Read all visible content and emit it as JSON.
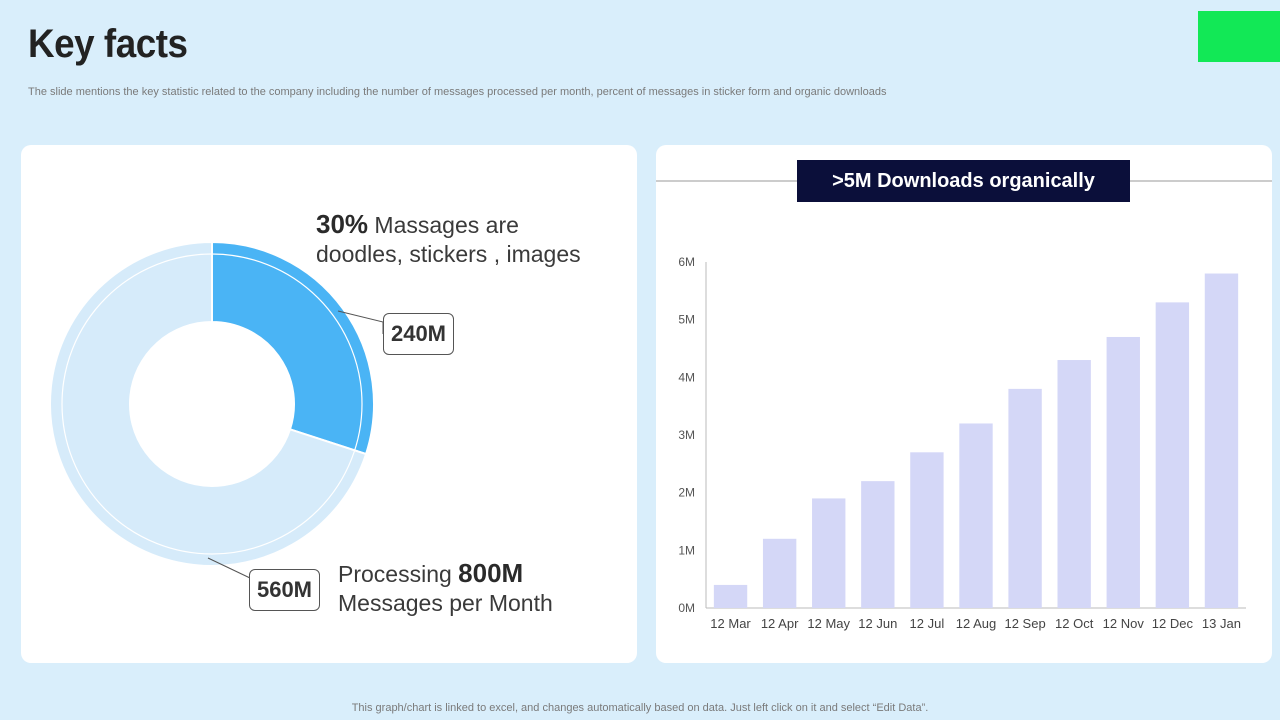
{
  "title": "Key facts",
  "subtitle": "The slide mentions the key statistic related to the company including the number of messages processed per month, percent of messages in sticker form and organic downloads",
  "footer": "This graph/chart is linked to excel,  and changes automatically based on data. Just left click on it and select “Edit Data”.",
  "callouts": {
    "top_value": "30%",
    "top_text_1": " Massages are",
    "top_text_2": "doodles, stickers , images",
    "bottom_prefix": "Processing ",
    "bottom_value": "800M",
    "bottom_text_2": "Messages per Month",
    "label_240": "240M",
    "label_560": "560M"
  },
  "banner": ">5M Downloads organically",
  "colors": {
    "background": "#d9eefb",
    "accent": "#12e856",
    "donut_highlight": "#4ab4f5",
    "donut_rest": "#d6ebfa",
    "bar": "#d4d7f7",
    "banner_bg": "#0b0f3a"
  },
  "chart_data": [
    {
      "type": "pie",
      "variant": "donut",
      "labels": [
        "240M",
        "560M"
      ],
      "values": [
        240,
        560
      ],
      "total": 800
    },
    {
      "type": "bar",
      "title": ">5M Downloads organically",
      "categories": [
        "12 Mar",
        "12 Apr",
        "12 May",
        "12 Jun",
        "12 Jul",
        "12 Aug",
        "12 Sep",
        "12 Oct",
        "12 Nov",
        "12 Dec",
        "13 Jan"
      ],
      "values": [
        0.4,
        1.2,
        1.9,
        2.2,
        2.7,
        3.2,
        3.8,
        4.3,
        4.7,
        5.3,
        5.8
      ],
      "yticks": [
        "0M",
        "1M",
        "2M",
        "3M",
        "4M",
        "5M",
        "6M"
      ],
      "ylim": [
        0,
        6
      ],
      "grid": false
    }
  ]
}
